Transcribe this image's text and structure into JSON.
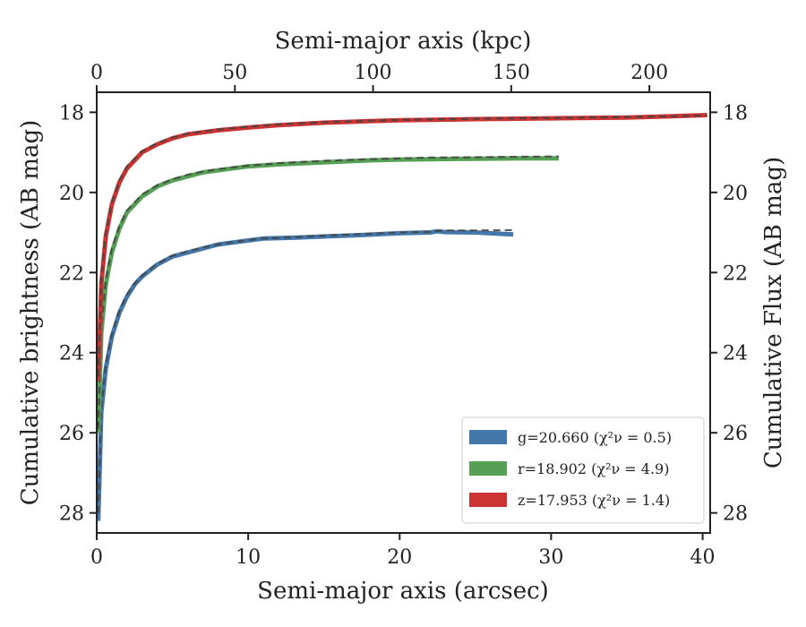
{
  "chart_data": {
    "type": "line",
    "title": "",
    "xlabel": "Semi-major axis (arcsec)",
    "xlabel_top": "Semi-major axis (kpc)",
    "ylabel": "Cumulative brightness (AB mag)",
    "ylabel_right": "Cumulative Flux (AB mag)",
    "xlim": [
      0,
      40.5
    ],
    "xlim_top": [
      0,
      222
    ],
    "ylim": [
      28.5,
      17.5
    ],
    "y_inverted": true,
    "xticks": [
      0,
      10,
      20,
      30,
      40
    ],
    "xticks_top": [
      0,
      50,
      100,
      150,
      200
    ],
    "yticks": [
      18,
      20,
      22,
      24,
      26,
      28
    ],
    "grid": false,
    "legend_position": "lower-right",
    "series": [
      {
        "name": "g=20.660 (χ²ν = 0.5)",
        "color": "#4477aa",
        "x": [
          0.1,
          0.3,
          0.6,
          1.0,
          1.5,
          2.0,
          2.5,
          3.0,
          4.0,
          5.0,
          6.0,
          7.0,
          8.0,
          9.0,
          10.0,
          11.0,
          13.0,
          15.0,
          17.0,
          20.0,
          22.0,
          22.5,
          23.0,
          25.0,
          27.5
        ],
        "values": [
          28.2,
          25.5,
          24.4,
          23.6,
          23.0,
          22.6,
          22.3,
          22.1,
          21.8,
          21.6,
          21.5,
          21.4,
          21.3,
          21.25,
          21.2,
          21.15,
          21.13,
          21.1,
          21.07,
          21.02,
          21.0,
          20.97,
          20.99,
          21.0,
          21.05
        ],
        "model_values": [
          28.0,
          25.4,
          24.3,
          23.55,
          22.95,
          22.55,
          22.28,
          22.08,
          21.78,
          21.58,
          21.47,
          21.38,
          21.3,
          21.24,
          21.19,
          21.15,
          21.12,
          21.08,
          21.05,
          21.0,
          20.98,
          20.96,
          20.95,
          20.95,
          20.94
        ]
      },
      {
        "name": "r=18.902 (χ²ν = 4.9)",
        "color": "#55a055",
        "x": [
          0.1,
          0.3,
          0.6,
          1.0,
          1.5,
          2.0,
          3.0,
          4.0,
          5.0,
          6.0,
          7.0,
          8.0,
          10.0,
          12.0,
          15.0,
          18.0,
          20.0,
          22.0,
          25.0,
          28.0,
          30.5
        ],
        "values": [
          26.0,
          23.5,
          22.3,
          21.5,
          20.9,
          20.5,
          20.1,
          19.85,
          19.7,
          19.6,
          19.5,
          19.45,
          19.35,
          19.3,
          19.25,
          19.2,
          19.18,
          19.17,
          19.16,
          19.15,
          19.15
        ],
        "model_values": [
          25.9,
          23.4,
          22.2,
          21.4,
          20.85,
          20.45,
          20.05,
          19.82,
          19.67,
          19.56,
          19.48,
          19.42,
          19.33,
          19.27,
          19.21,
          19.17,
          19.15,
          19.13,
          19.12,
          19.11,
          19.1
        ]
      },
      {
        "name": "z=17.953 (χ²ν = 1.4)",
        "color": "#cc3333",
        "x": [
          0.1,
          0.3,
          0.6,
          1.0,
          1.5,
          2.0,
          3.0,
          4.0,
          5.0,
          6.0,
          8.0,
          10.0,
          12.0,
          15.0,
          18.0,
          20.0,
          25.0,
          30.0,
          35.0,
          38.0,
          40.3
        ],
        "values": [
          24.7,
          22.3,
          21.1,
          20.3,
          19.75,
          19.4,
          19.0,
          18.8,
          18.65,
          18.55,
          18.45,
          18.38,
          18.32,
          18.26,
          18.22,
          18.2,
          18.17,
          18.15,
          18.13,
          18.1,
          18.07
        ],
        "model_values": [
          24.6,
          22.2,
          21.0,
          20.25,
          19.7,
          19.35,
          18.97,
          18.77,
          18.63,
          18.53,
          18.43,
          18.36,
          18.3,
          18.25,
          18.21,
          18.19,
          18.16,
          18.14,
          18.12,
          18.1,
          18.08
        ]
      }
    ]
  }
}
